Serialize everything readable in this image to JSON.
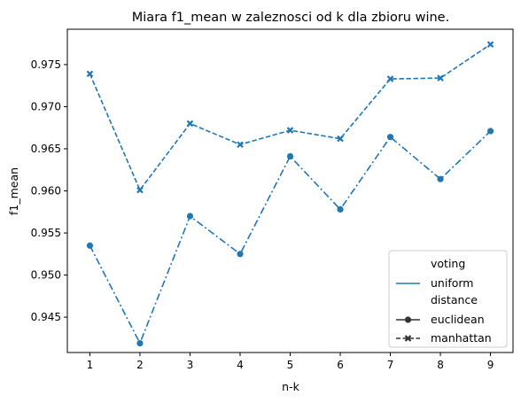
{
  "chart_data": {
    "type": "line",
    "title": "Miara f1_mean w zaleznosci od k dla zbioru wine.",
    "xlabel": "n-k",
    "ylabel": "f1_mean",
    "x": [
      1,
      2,
      3,
      4,
      5,
      6,
      7,
      8,
      9
    ],
    "xlim": [
      0.55,
      9.45
    ],
    "ylim": [
      0.9408,
      0.9792
    ],
    "xticks": [
      "1",
      "2",
      "3",
      "4",
      "5",
      "6",
      "7",
      "8",
      "9"
    ],
    "yticks": [
      "0.945",
      "0.950",
      "0.955",
      "0.960",
      "0.965",
      "0.970",
      "0.975"
    ],
    "grid": false,
    "legend_position": "lower-right",
    "series": [
      {
        "name": "euclidean",
        "voting": "uniform",
        "marker": "circle",
        "linestyle": "dashdot",
        "color": "#1f77b4",
        "values": [
          0.9535,
          0.9419,
          0.957,
          0.9525,
          0.9641,
          0.9578,
          0.9664,
          0.9614,
          0.9671
        ]
      },
      {
        "name": "manhattan",
        "voting": "uniform",
        "marker": "x",
        "linestyle": "dashed",
        "color": "#1f77b4",
        "values": [
          0.9739,
          0.9601,
          0.968,
          0.9655,
          0.9672,
          0.9662,
          0.9733,
          0.9734,
          0.9774
        ]
      }
    ],
    "legend": {
      "voting_title": "voting",
      "voting_item": "uniform",
      "distance_title": "distance",
      "distance_items": [
        "euclidean",
        "manhattan"
      ]
    }
  }
}
